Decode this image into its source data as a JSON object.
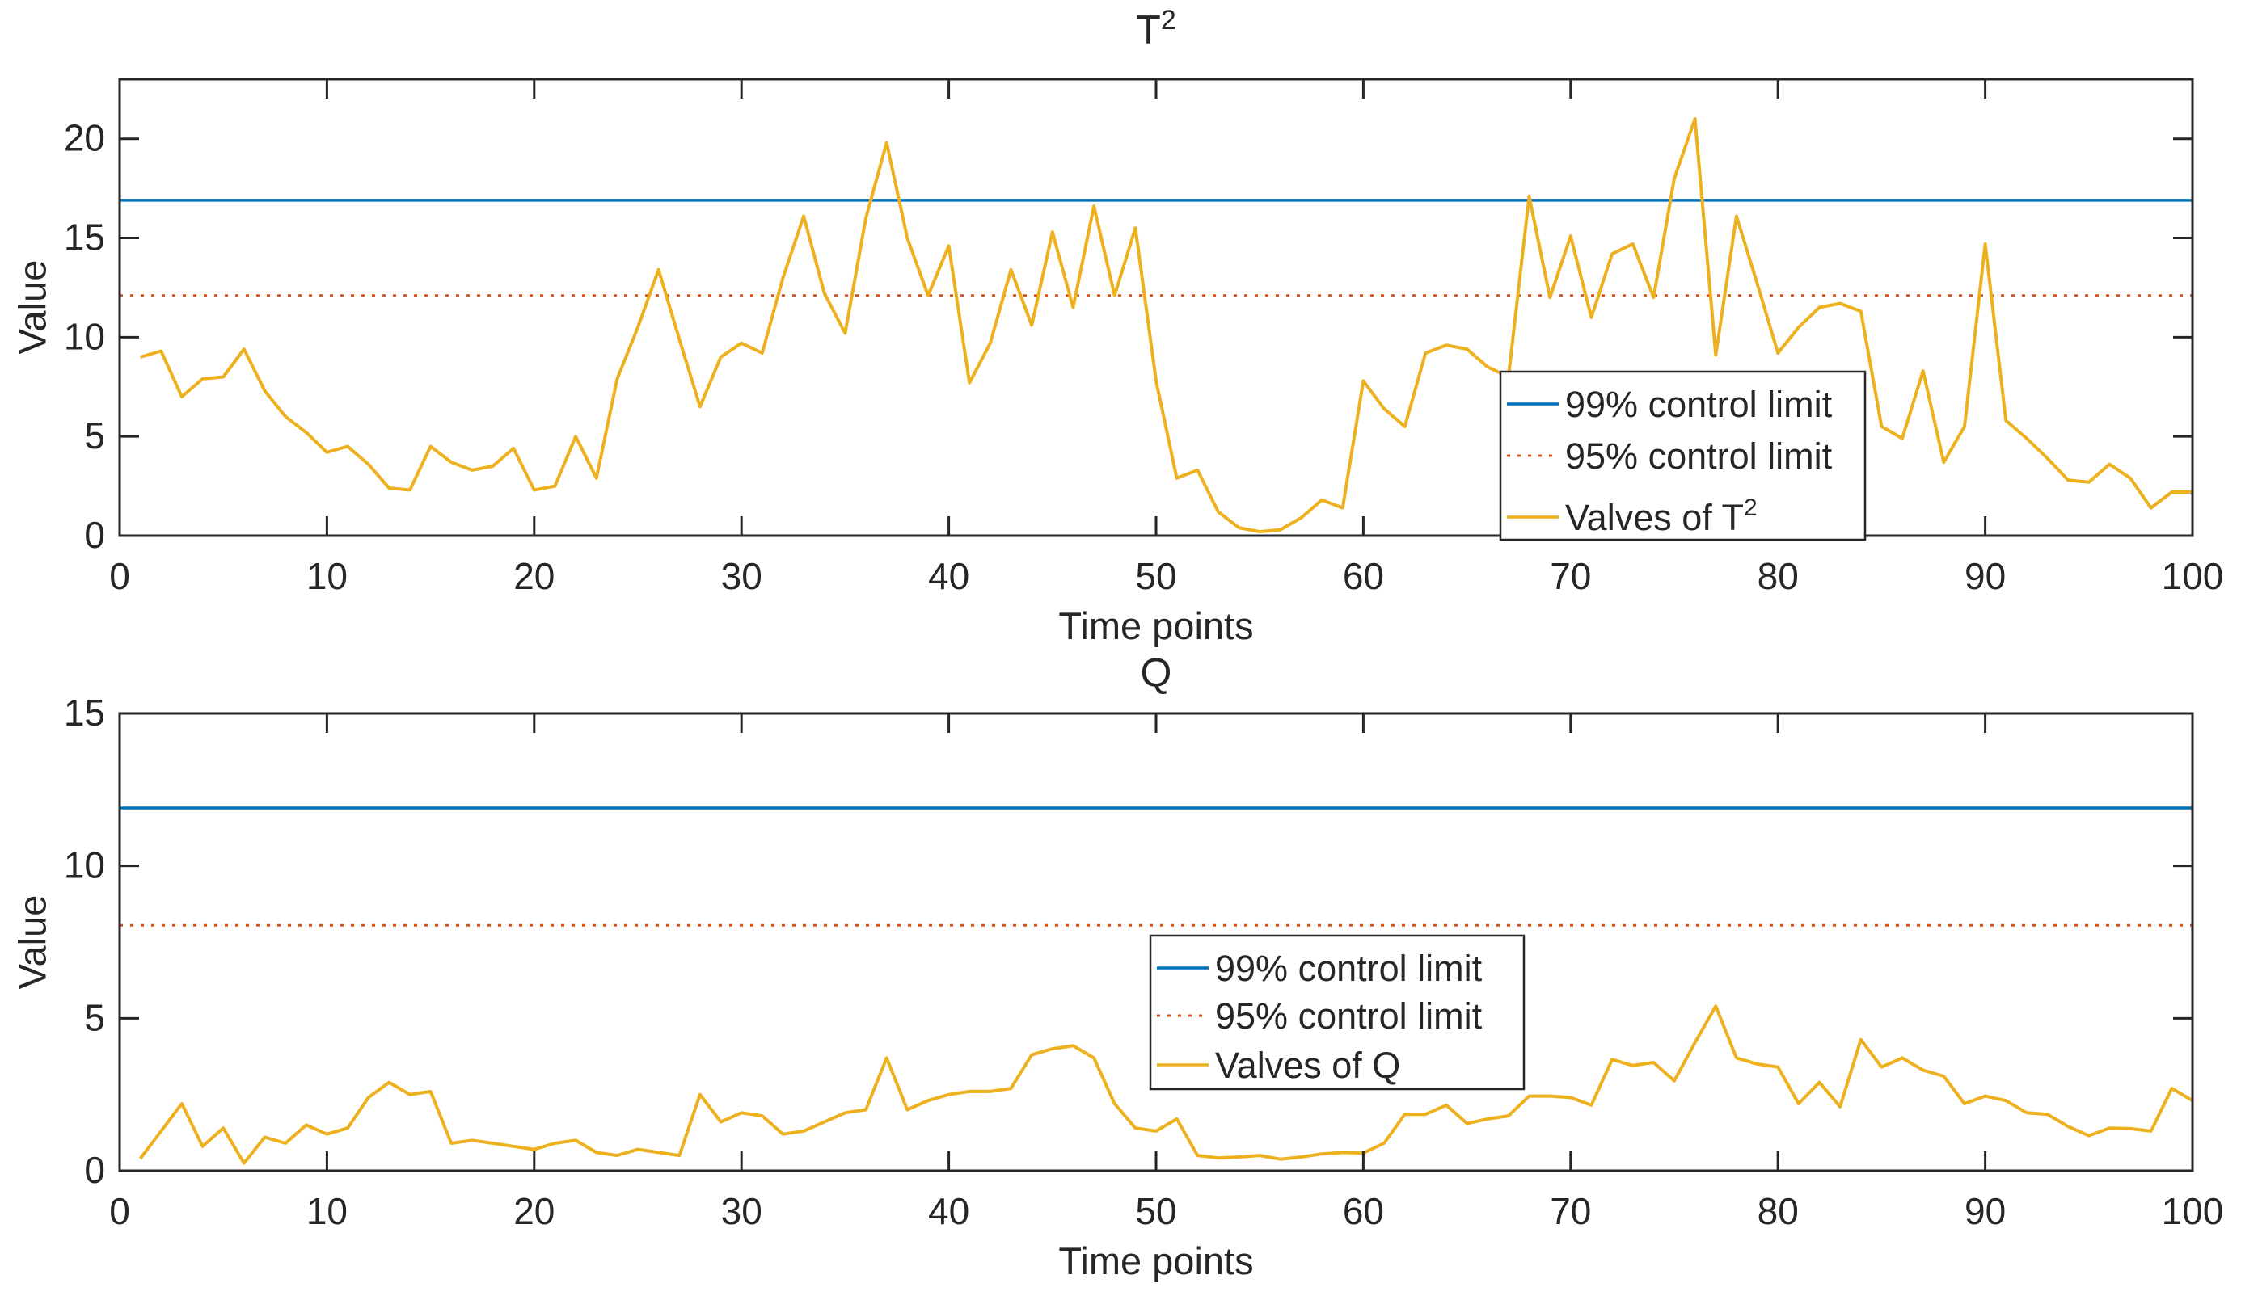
{
  "figure": {
    "background": "#ffffff"
  },
  "colors": {
    "limit99": "#0072BD",
    "limit95": "#D95319",
    "series": "#EDB120",
    "axis": "#262626",
    "text": "#262626",
    "legend_border": "#262626",
    "legend_background": "#ffffff"
  },
  "chart_data": [
    {
      "type": "line",
      "title_base": "T",
      "title_sup": "2",
      "xlabel": "Time points",
      "ylabel": "Value",
      "xlim": [
        0,
        100
      ],
      "ylim": [
        0,
        23
      ],
      "xticks": [
        0,
        10,
        20,
        30,
        40,
        50,
        60,
        70,
        80,
        90,
        100
      ],
      "yticks": [
        0,
        5,
        10,
        15,
        20
      ],
      "grid": false,
      "legend_position": "inside-lower-right",
      "control_limits": {
        "p99": 16.9,
        "p95": 12.1
      },
      "legend": [
        {
          "label_base": "99% control limit",
          "label_sup": "",
          "color": "#0072BD",
          "style": "solid"
        },
        {
          "label_base": "95% control limit",
          "label_sup": "",
          "color": "#D95319",
          "style": "dotted"
        },
        {
          "label_base": "Valves of T",
          "label_sup": "2",
          "color": "#EDB120",
          "style": "solid"
        }
      ],
      "x_start": 1,
      "values": [
        9.0,
        9.3,
        7.0,
        7.9,
        8.0,
        9.4,
        7.3,
        6.0,
        5.2,
        4.2,
        4.5,
        3.6,
        2.4,
        2.3,
        4.5,
        3.7,
        3.3,
        3.5,
        4.4,
        2.3,
        2.5,
        5.0,
        2.9,
        7.9,
        10.5,
        13.4,
        9.9,
        6.5,
        9.0,
        9.7,
        9.2,
        13.0,
        16.1,
        12.2,
        10.2,
        16.0,
        19.8,
        15.0,
        12.1,
        14.6,
        7.7,
        9.7,
        13.4,
        10.6,
        15.3,
        11.5,
        16.6,
        12.1,
        15.5,
        7.8,
        2.9,
        3.3,
        1.2,
        0.4,
        0.2,
        0.3,
        0.9,
        1.8,
        1.4,
        7.8,
        6.4,
        5.5,
        9.2,
        9.6,
        9.4,
        8.5,
        8.0,
        17.1,
        12.0,
        15.1,
        11.0,
        14.2,
        14.7,
        12.0,
        18.0,
        21.0,
        9.1,
        16.1,
        12.7,
        9.2,
        10.5,
        11.5,
        11.7,
        11.3,
        5.5,
        4.9,
        8.3,
        3.7,
        5.5,
        14.7,
        5.8,
        4.9,
        3.9,
        2.8,
        2.7,
        3.6,
        2.9,
        1.4,
        2.2,
        2.2
      ]
    },
    {
      "type": "line",
      "title_base": "Q",
      "title_sup": "",
      "xlabel": "Time points",
      "ylabel": "Value",
      "xlim": [
        0,
        100
      ],
      "ylim": [
        0,
        15
      ],
      "xticks": [
        0,
        10,
        20,
        30,
        40,
        50,
        60,
        70,
        80,
        90,
        100
      ],
      "yticks": [
        0,
        5,
        10,
        15
      ],
      "grid": false,
      "legend_position": "inside-middle-right",
      "control_limits": {
        "p99": 11.9,
        "p95": 8.05
      },
      "legend": [
        {
          "label_base": "99% control limit",
          "label_sup": "",
          "color": "#0072BD",
          "style": "solid"
        },
        {
          "label_base": "95% control limit",
          "label_sup": "",
          "color": "#D95319",
          "style": "dotted"
        },
        {
          "label_base": "Valves of Q",
          "label_sup": "",
          "color": "#EDB120",
          "style": "solid"
        }
      ],
      "x_start": 1,
      "values": [
        0.4,
        1.3,
        2.2,
        0.8,
        1.4,
        0.25,
        1.1,
        0.9,
        1.5,
        1.2,
        1.4,
        2.4,
        2.9,
        2.5,
        2.6,
        0.9,
        1.0,
        0.9,
        0.8,
        0.7,
        0.9,
        1.0,
        0.6,
        0.5,
        0.7,
        0.6,
        0.5,
        2.5,
        1.6,
        1.9,
        1.8,
        1.2,
        1.3,
        1.6,
        1.9,
        2.0,
        3.7,
        2.0,
        2.3,
        2.5,
        2.6,
        2.6,
        2.7,
        3.8,
        4.0,
        4.1,
        3.7,
        2.2,
        1.4,
        1.3,
        1.7,
        0.5,
        0.42,
        0.45,
        0.5,
        0.38,
        0.45,
        0.55,
        0.6,
        0.58,
        0.9,
        1.85,
        1.85,
        2.15,
        1.55,
        1.7,
        1.8,
        2.45,
        2.45,
        2.4,
        2.15,
        3.65,
        3.45,
        3.55,
        2.95,
        4.2,
        5.4,
        3.7,
        3.5,
        3.4,
        2.2,
        2.9,
        2.1,
        4.3,
        3.4,
        3.7,
        3.3,
        3.1,
        2.2,
        2.45,
        2.3,
        1.9,
        1.85,
        1.45,
        1.15,
        1.4,
        1.38,
        1.3,
        2.7,
        2.3
      ]
    }
  ]
}
